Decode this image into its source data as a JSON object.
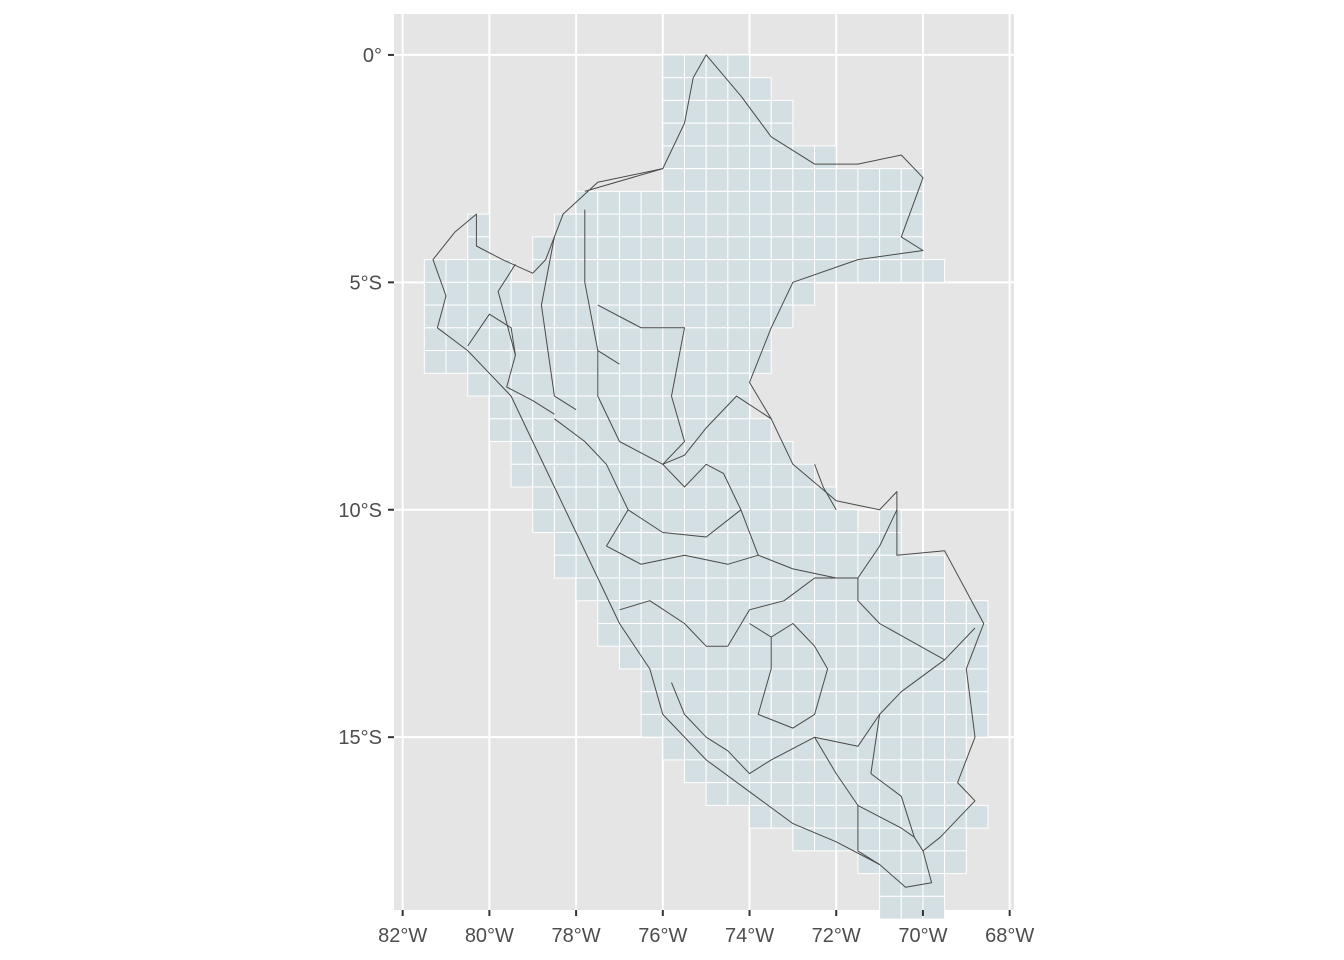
{
  "map": {
    "type": "map",
    "projection": "geographic",
    "xlim": [
      -82.2,
      -67.9
    ],
    "ylim": [
      -18.8,
      0.9
    ],
    "x_ticks": [
      {
        "value": -82,
        "label": "82°W"
      },
      {
        "value": -80,
        "label": "80°W"
      },
      {
        "value": -78,
        "label": "78°W"
      },
      {
        "value": -76,
        "label": "76°W"
      },
      {
        "value": -74,
        "label": "74°W"
      },
      {
        "value": -72,
        "label": "72°W"
      },
      {
        "value": -70,
        "label": "70°W"
      },
      {
        "value": -68,
        "label": "68°W"
      }
    ],
    "y_ticks": [
      {
        "value": 0,
        "label": "0°"
      },
      {
        "value": -5,
        "label": "5°S"
      },
      {
        "value": -10,
        "label": "10°S"
      },
      {
        "value": -15,
        "label": "15°S"
      }
    ],
    "colors": {
      "panel_background": "#e5e5e5",
      "gridline": "#ffffff",
      "grid_cell_fill": "#d3dfe2",
      "grid_cell_stroke": "#ffffff",
      "boundary_stroke": "#4a4a4a",
      "tick_text": "#4d4d4d",
      "tick_mark": "#333333"
    },
    "cell_size_deg": 0.5,
    "grid_rows": [
      {
        "lat": 0.0,
        "ranges": [
          [
            -76.0,
            -74.0
          ]
        ]
      },
      {
        "lat": -0.5,
        "ranges": [
          [
            -76.0,
            -73.5
          ]
        ]
      },
      {
        "lat": -1.0,
        "ranges": [
          [
            -76.0,
            -73.0
          ]
        ]
      },
      {
        "lat": -1.5,
        "ranges": [
          [
            -76.0,
            -73.0
          ]
        ]
      },
      {
        "lat": -2.0,
        "ranges": [
          [
            -76.0,
            -72.0
          ]
        ]
      },
      {
        "lat": -2.5,
        "ranges": [
          [
            -76.0,
            -70.0
          ]
        ]
      },
      {
        "lat": -3.0,
        "ranges": [
          [
            -78.0,
            -70.0
          ]
        ]
      },
      {
        "lat": -3.5,
        "ranges": [
          [
            -80.5,
            -80.0
          ],
          [
            -78.5,
            -70.0
          ]
        ]
      },
      {
        "lat": -4.0,
        "ranges": [
          [
            -80.5,
            -80.0
          ],
          [
            -79.0,
            -70.0
          ]
        ]
      },
      {
        "lat": -4.5,
        "ranges": [
          [
            -81.5,
            -79.5
          ],
          [
            -79.0,
            -69.5
          ]
        ]
      },
      {
        "lat": -5.0,
        "ranges": [
          [
            -81.5,
            -72.5
          ]
        ]
      },
      {
        "lat": -5.5,
        "ranges": [
          [
            -81.5,
            -73.0
          ]
        ]
      },
      {
        "lat": -6.0,
        "ranges": [
          [
            -81.5,
            -73.5
          ]
        ]
      },
      {
        "lat": -6.5,
        "ranges": [
          [
            -81.5,
            -73.5
          ]
        ]
      },
      {
        "lat": -7.0,
        "ranges": [
          [
            -80.5,
            -74.0
          ]
        ]
      },
      {
        "lat": -7.5,
        "ranges": [
          [
            -80.0,
            -74.0
          ]
        ]
      },
      {
        "lat": -8.0,
        "ranges": [
          [
            -80.0,
            -73.5
          ]
        ]
      },
      {
        "lat": -8.5,
        "ranges": [
          [
            -79.5,
            -73.0
          ]
        ]
      },
      {
        "lat": -9.0,
        "ranges": [
          [
            -79.5,
            -72.5
          ]
        ]
      },
      {
        "lat": -9.5,
        "ranges": [
          [
            -79.0,
            -72.0
          ]
        ]
      },
      {
        "lat": -10.0,
        "ranges": [
          [
            -79.0,
            -71.5
          ],
          [
            -71.0,
            -70.5
          ]
        ]
      },
      {
        "lat": -10.5,
        "ranges": [
          [
            -78.5,
            -70.5
          ]
        ]
      },
      {
        "lat": -11.0,
        "ranges": [
          [
            -78.5,
            -69.5
          ]
        ]
      },
      {
        "lat": -11.5,
        "ranges": [
          [
            -78.0,
            -69.5
          ]
        ]
      },
      {
        "lat": -12.0,
        "ranges": [
          [
            -77.5,
            -68.5
          ]
        ]
      },
      {
        "lat": -12.5,
        "ranges": [
          [
            -77.5,
            -68.5
          ]
        ]
      },
      {
        "lat": -13.0,
        "ranges": [
          [
            -77.0,
            -68.5
          ]
        ]
      },
      {
        "lat": -13.5,
        "ranges": [
          [
            -76.5,
            -68.5
          ]
        ]
      },
      {
        "lat": -14.0,
        "ranges": [
          [
            -76.5,
            -68.5
          ]
        ]
      },
      {
        "lat": -14.5,
        "ranges": [
          [
            -76.5,
            -68.5
          ]
        ]
      },
      {
        "lat": -15.0,
        "ranges": [
          [
            -76.0,
            -69.0
          ]
        ]
      },
      {
        "lat": -15.5,
        "ranges": [
          [
            -75.5,
            -69.0
          ]
        ]
      },
      {
        "lat": -16.0,
        "ranges": [
          [
            -75.0,
            -69.0
          ]
        ]
      },
      {
        "lat": -16.5,
        "ranges": [
          [
            -74.0,
            -68.5
          ]
        ]
      },
      {
        "lat": -17.0,
        "ranges": [
          [
            -73.0,
            -69.0
          ]
        ]
      },
      {
        "lat": -17.5,
        "ranges": [
          [
            -71.5,
            -69.0
          ]
        ]
      },
      {
        "lat": -18.0,
        "ranges": [
          [
            -71.0,
            -69.5
          ]
        ]
      },
      {
        "lat": -18.5,
        "ranges": [
          [
            -71.0,
            -69.5
          ]
        ]
      }
    ],
    "country_outline": [
      [
        -75.0,
        0.0
      ],
      [
        -74.2,
        -0.9
      ],
      [
        -73.5,
        -1.8
      ],
      [
        -72.5,
        -2.4
      ],
      [
        -71.5,
        -2.4
      ],
      [
        -70.5,
        -2.2
      ],
      [
        -70.0,
        -2.7
      ],
      [
        -70.5,
        -4.0
      ],
      [
        -70.0,
        -4.3
      ],
      [
        -71.5,
        -4.5
      ],
      [
        -73.0,
        -5.0
      ],
      [
        -73.5,
        -6.0
      ],
      [
        -74.0,
        -7.2
      ],
      [
        -73.5,
        -8.0
      ],
      [
        -73.0,
        -9.0
      ],
      [
        -72.0,
        -9.8
      ],
      [
        -71.0,
        -10.0
      ],
      [
        -70.6,
        -9.6
      ],
      [
        -70.6,
        -11.0
      ],
      [
        -69.5,
        -10.9
      ],
      [
        -68.6,
        -12.5
      ],
      [
        -69.0,
        -13.5
      ],
      [
        -68.8,
        -15.0
      ],
      [
        -69.2,
        -16.0
      ],
      [
        -68.8,
        -16.4
      ],
      [
        -69.6,
        -17.2
      ],
      [
        -70.0,
        -17.5
      ],
      [
        -69.8,
        -18.2
      ],
      [
        -70.4,
        -18.3
      ],
      [
        -71.0,
        -17.8
      ],
      [
        -72.0,
        -17.3
      ],
      [
        -73.0,
        -16.9
      ],
      [
        -74.0,
        -16.2
      ],
      [
        -75.0,
        -15.5
      ],
      [
        -76.0,
        -14.5
      ],
      [
        -76.3,
        -13.5
      ],
      [
        -77.0,
        -12.5
      ],
      [
        -77.5,
        -11.5
      ],
      [
        -78.0,
        -10.5
      ],
      [
        -78.5,
        -9.5
      ],
      [
        -79.0,
        -8.5
      ],
      [
        -79.5,
        -7.5
      ],
      [
        -80.0,
        -7.0
      ],
      [
        -80.5,
        -6.5
      ],
      [
        -81.2,
        -6.0
      ],
      [
        -81.0,
        -5.3
      ],
      [
        -81.3,
        -4.5
      ],
      [
        -80.8,
        -3.9
      ],
      [
        -80.3,
        -3.5
      ],
      [
        -80.3,
        -4.2
      ],
      [
        -79.7,
        -4.5
      ],
      [
        -79.0,
        -4.8
      ],
      [
        -78.7,
        -4.5
      ],
      [
        -78.3,
        -3.5
      ],
      [
        -77.5,
        -2.8
      ],
      [
        -76.0,
        -2.5
      ],
      [
        -75.5,
        -1.5
      ],
      [
        -75.3,
        -0.5
      ],
      [
        -75.0,
        0.0
      ]
    ],
    "internal_boundaries": [
      [
        [
          -80.5,
          -6.4
        ],
        [
          -80.0,
          -5.7
        ],
        [
          -79.5,
          -6.0
        ],
        [
          -79.4,
          -6.6
        ]
      ],
      [
        [
          -79.4,
          -4.6
        ],
        [
          -79.8,
          -5.2
        ],
        [
          -79.4,
          -6.6
        ],
        [
          -79.6,
          -7.3
        ],
        [
          -79.0,
          -7.6
        ],
        [
          -78.5,
          -7.9
        ]
      ],
      [
        [
          -78.5,
          -4.0
        ],
        [
          -78.8,
          -5.5
        ],
        [
          -78.5,
          -7.5
        ],
        [
          -78.0,
          -7.8
        ]
      ],
      [
        [
          -77.8,
          -3.4
        ],
        [
          -77.8,
          -5.0
        ],
        [
          -77.5,
          -6.5
        ],
        [
          -77.5,
          -7.5
        ],
        [
          -77.0,
          -8.5
        ]
      ],
      [
        [
          -77.8,
          -3.0
        ],
        [
          -76.0,
          -2.5
        ]
      ],
      [
        [
          -77.5,
          -5.5
        ],
        [
          -76.5,
          -6.0
        ],
        [
          -75.5,
          -6.0
        ],
        [
          -75.8,
          -7.5
        ],
        [
          -75.5,
          -8.5
        ],
        [
          -76.0,
          -9.0
        ]
      ],
      [
        [
          -77.5,
          -6.5
        ],
        [
          -77.0,
          -6.8
        ]
      ],
      [
        [
          -78.5,
          -8.0
        ],
        [
          -77.8,
          -8.5
        ],
        [
          -77.3,
          -9.0
        ],
        [
          -76.8,
          -10.0
        ],
        [
          -77.3,
          -10.8
        ]
      ],
      [
        [
          -77.0,
          -8.5
        ],
        [
          -76.0,
          -9.0
        ],
        [
          -75.5,
          -8.8
        ],
        [
          -75.0,
          -8.2
        ],
        [
          -74.3,
          -7.5
        ],
        [
          -73.5,
          -8.0
        ]
      ],
      [
        [
          -76.0,
          -9.0
        ],
        [
          -75.5,
          -9.5
        ],
        [
          -75.0,
          -9.0
        ],
        [
          -74.6,
          -9.2
        ],
        [
          -74.2,
          -10.0
        ],
        [
          -73.8,
          -11.0
        ]
      ],
      [
        [
          -76.8,
          -10.0
        ],
        [
          -76.0,
          -10.5
        ],
        [
          -75.0,
          -10.6
        ],
        [
          -74.2,
          -10.0
        ]
      ],
      [
        [
          -77.3,
          -10.8
        ],
        [
          -76.5,
          -11.2
        ],
        [
          -75.5,
          -11.0
        ],
        [
          -74.5,
          -11.2
        ],
        [
          -73.8,
          -11.0
        ],
        [
          -73.0,
          -11.3
        ]
      ],
      [
        [
          -77.0,
          -12.2
        ],
        [
          -76.3,
          -12.0
        ],
        [
          -75.5,
          -12.5
        ],
        [
          -75.0,
          -13.0
        ],
        [
          -74.5,
          -13.0
        ]
      ],
      [
        [
          -74.5,
          -13.0
        ],
        [
          -74.0,
          -12.2
        ],
        [
          -73.2,
          -12.0
        ],
        [
          -72.5,
          -11.5
        ],
        [
          -71.5,
          -11.5
        ],
        [
          -71.5,
          -12.0
        ],
        [
          -71.0,
          -12.5
        ],
        [
          -69.5,
          -13.3
        ],
        [
          -68.8,
          -12.6
        ]
      ],
      [
        [
          -73.0,
          -11.3
        ],
        [
          -72.0,
          -11.5
        ]
      ],
      [
        [
          -71.5,
          -11.5
        ],
        [
          -71.0,
          -10.8
        ],
        [
          -70.6,
          -10.0
        ]
      ],
      [
        [
          -72.0,
          -10.0
        ],
        [
          -72.3,
          -9.5
        ],
        [
          -72.5,
          -9.0
        ]
      ],
      [
        [
          -75.8,
          -13.8
        ],
        [
          -75.5,
          -14.5
        ],
        [
          -75.0,
          -15.0
        ],
        [
          -74.5,
          -15.3
        ],
        [
          -74.0,
          -15.8
        ],
        [
          -73.5,
          -15.5
        ],
        [
          -72.5,
          -15.0
        ]
      ],
      [
        [
          -74.0,
          -12.5
        ],
        [
          -73.5,
          -12.8
        ],
        [
          -73.5,
          -13.5
        ],
        [
          -73.8,
          -14.5
        ],
        [
          -73.0,
          -14.8
        ],
        [
          -72.5,
          -14.5
        ],
        [
          -72.2,
          -13.5
        ],
        [
          -72.5,
          -13.0
        ],
        [
          -73.0,
          -12.5
        ],
        [
          -73.5,
          -12.8
        ]
      ],
      [
        [
          -72.5,
          -15.0
        ],
        [
          -71.5,
          -15.2
        ],
        [
          -71.0,
          -14.5
        ],
        [
          -70.5,
          -14.0
        ],
        [
          -69.5,
          -13.3
        ]
      ],
      [
        [
          -71.0,
          -14.5
        ],
        [
          -71.2,
          -15.8
        ],
        [
          -70.5,
          -16.3
        ],
        [
          -70.2,
          -17.2
        ],
        [
          -70.0,
          -17.5
        ]
      ],
      [
        [
          -72.5,
          -15.0
        ],
        [
          -72.0,
          -15.8
        ],
        [
          -71.5,
          -16.5
        ],
        [
          -71.5,
          -17.5
        ],
        [
          -71.0,
          -17.8
        ]
      ],
      [
        [
          -71.5,
          -16.5
        ],
        [
          -70.5,
          -17.0
        ],
        [
          -70.2,
          -17.2
        ]
      ]
    ]
  }
}
